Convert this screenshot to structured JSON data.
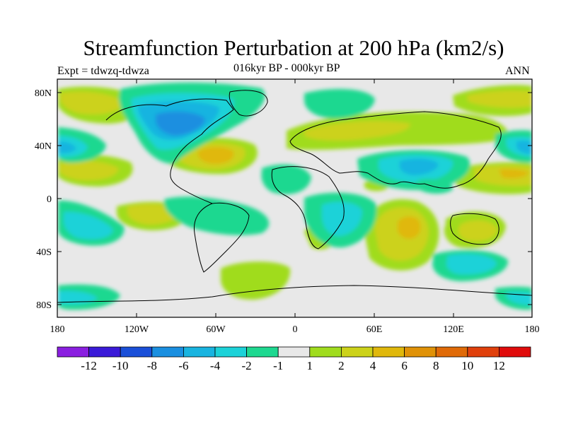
{
  "title": "Streamfunction Perturbation at 200 hPa (km2/s)",
  "left_label": "Expt = tdwzq-tdwza",
  "center_label": "016kyr BP - 000kyr BP",
  "right_label": "ANN",
  "lat_ticks": [
    "80N",
    "40N",
    "0",
    "40S",
    "80S"
  ],
  "lon_ticks": [
    "180",
    "120W",
    "60W",
    "0",
    "60E",
    "120E",
    "180"
  ],
  "colorbar": {
    "colors": [
      "#8a1fe0",
      "#3a1ad8",
      "#1a4fd8",
      "#1a8fe0",
      "#19b4e0",
      "#1cd2d8",
      "#1ed890",
      "#e8e8e8",
      "#a0dc1e",
      "#ccd21a",
      "#e0b80c",
      "#e09208",
      "#e06a08",
      "#e0400c",
      "#e00c0c"
    ],
    "labels": [
      "-12",
      "-10",
      "-8",
      "-6",
      "-4",
      "-2",
      "-1",
      "1",
      "2",
      "4",
      "6",
      "8",
      "10",
      "12"
    ]
  },
  "map_background": "#e8e8e8"
}
